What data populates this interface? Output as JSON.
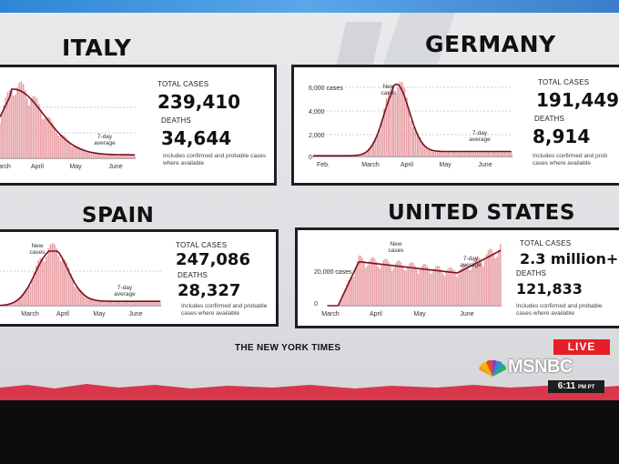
{
  "panels": {
    "italy": {
      "country": "ITALY",
      "total_cases_label": "TOTAL CASES",
      "total_cases": "239,410",
      "deaths_label": "DEATHS",
      "deaths": "34,644",
      "note": "Includes confirmed and probable cases where available",
      "avg_label": "7-day average",
      "month_labels": [
        "arch",
        "April",
        "May",
        "June"
      ]
    },
    "germany": {
      "country": "GERMANY",
      "total_cases_label": "TOTAL CASES",
      "total_cases": "191,449",
      "deaths_label": "DEATHS",
      "deaths": "8,914",
      "note": "Includes confirmed and prob cases where available",
      "new_label": "New cases",
      "avg_label": "7-day average",
      "y_ticks": [
        "6,000 cases",
        "4,000",
        "2,000",
        "0"
      ],
      "month_labels": [
        "Feb.",
        "March",
        "April",
        "May",
        "June"
      ]
    },
    "spain": {
      "country": "SPAIN",
      "total_cases_label": "TOTAL CASES",
      "total_cases": "247,086",
      "deaths_label": "DEATHS",
      "deaths": "28,327",
      "note": "Includes confirmed and probable cases where available",
      "new_label": "New cases",
      "avg_label": "7-day average",
      "month_labels": [
        "March",
        "April",
        "May",
        "June"
      ]
    },
    "us": {
      "country": "UNITED STATES",
      "total_cases_label": "TOTAL CASES",
      "total_cases": "2.3 million+",
      "deaths_label": "DEATHS",
      "deaths": "121,833",
      "note": "Includes confirmed and probable cases where available",
      "new_label": "New cases",
      "avg_label": "7-day average",
      "y_ticks": [
        "20,000 cases",
        "0"
      ],
      "month_labels": [
        "March",
        "April",
        "May",
        "June"
      ]
    }
  },
  "footer": {
    "source": "THE NEW YORK TIMES",
    "live": "LIVE",
    "network": "MSNBC",
    "time": "6:11",
    "time_suffix": "PM PT"
  },
  "colors": {
    "bar": "#e9a3a8",
    "avg_line": "#7a1020",
    "live": "#e51f25"
  }
}
